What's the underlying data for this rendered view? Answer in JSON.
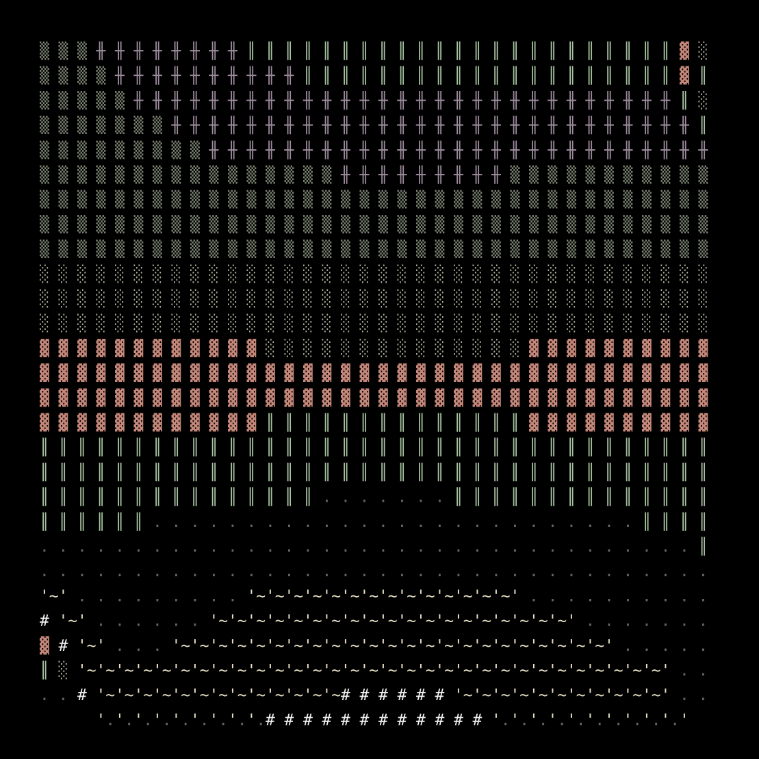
{
  "rows": [
    "▒ ▒ ▒ ╫ ╫ ╫ ╫ ╫ ╫ ╫ ╫ ║ ║ ║ ║ ║ ║ ║ ║ ║ ║ ║ ║ ║ ║ ║ ║ ║ ║ ║ ║ ║ ║ ║ ▓ ░ ",
    "▒ ▒ ▒ ▒ ╫ ╫ ╫ ╫ ╫ ╫ ╫ ╫ ╫ ╫ ║ ║ ║ ║ ║ ║ ║ ║ ║ ║ ║ ║ ║ ║ ║ ║ ║ ║ ║ ║ ▓ ║ ",
    "▒ ▒ ▒ ▒ ▒ ╫ ╫ ╫ ╫ ╫ ╫ ╫ ╫ ╫ ╫ ╫ ╫ ╫ ╫ ╫ ╫ ╫ ╫ ╫ ╫ ╫ ╫ ╫ ╫ ╫ ╫ ╫ ╫ ╫ ║ ░ ",
    "▒ ▒ ▒ ▒ ▒ ▒ ▒ ╫ ╫ ╫ ╫ ╫ ╫ ╫ ╫ ╫ ╫ ╫ ╫ ╫ ╫ ╫ ╫ ╫ ╫ ╫ ╫ ╫ ╫ ╫ ╫ ╫ ╫ ╫ ╫ ║ ",
    "▒ ▒ ▒ ▒ ▒ ▒ ▒ ▒ ▒ ╫ ╫ ╫ ╫ ╫ ╫ ╫ ╫ ╫ ╫ ╫ ╫ ╫ ╫ ╫ ╫ ╫ ╫ ╫ ╫ ╫ ╫ ╫ ╫ ╫ ╫ ╫ ",
    "▒ ▒ ▒ ▒ ▒ ▒ ▒ ▒ ▒ ▒ ▒ ▒ ▒ ▒ ▒ ▒ ╫ ╫ ╫ ╫ ╫ ╫ ╫ ╫ ╫ ▒ ▒ ▒ ▒ ▒ ▒ ▒ ▒ ▒ ▒ ▒ ",
    "▒ ▒ ▒ ▒ ▒ ▒ ▒ ▒ ▒ ▒ ▒ ▒ ▒ ▒ ▒ ▒ ▒ ▒ ▒ ▒ ▒ ▒ ▒ ▒ ▒ ▒ ▒ ▒ ▒ ▒ ▒ ▒ ▒ ▒ ▒ ▒ ",
    "▒ ▒ ▒ ▒ ▒ ▒ ▒ ▒ ▒ ▒ ▒ ▒ ▒ ▒ ▒ ▒ ▒ ▒ ▒ ▒ ▒ ▒ ▒ ▒ ▒ ▒ ▒ ▒ ▒ ▒ ▒ ▒ ▒ ▒ ▒ ▒ ",
    "▒ ▒ ▒ ▒ ▒ ▒ ▒ ▒ ▒ ▒ ▒ ▒ ▒ ▒ ▒ ▒ ▒ ▒ ▒ ▒ ▒ ▒ ▒ ▒ ▒ ▒ ▒ ▒ ▒ ▒ ▒ ▒ ▒ ▒ ▒ ▒ ",
    "░ ░ ░ ░ ░ ░ ░ ░ ░ ░ ░ ░ ░ ░ ░ ░ ░ ░ ░ ░ ░ ░ ░ ░ ░ ░ ░ ░ ░ ░ ░ ░ ░ ░ ░ ░ ",
    "░ ░ ░ ░ ░ ░ ░ ░ ░ ░ ░ ░ ░ ░ ░ ░ ░ ░ ░ ░ ░ ░ ░ ░ ░ ░ ░ ░ ░ ░ ░ ░ ░ ░ ░ ░ ",
    "░ ░ ░ ░ ░ ░ ░ ░ ░ ░ ░ ░ ░ ░ ░ ░ ░ ░ ░ ░ ░ ░ ░ ░ ░ ░ ░ ░ ░ ░ ░ ░ ░ ░ ░ ░ ",
    "▓ ▓ ▓ ▓ ▓ ▓ ▓ ▓ ▓ ▓ ▓ ▓ ░ ░ ░ ░ ░ ░ ░ ░ ░ ░ ░ ░ ░ ░ ▓ ▓ ▓ ▓ ▓ ▓ ▓ ▓ ▓ ▓ ",
    "▓ ▓ ▓ ▓ ▓ ▓ ▓ ▓ ▓ ▓ ▓ ▓ ▓ ▓ ▓ ▓ ▓ ▓ ▓ ▓ ▓ ▓ ▓ ▓ ▓ ▓ ▓ ▓ ▓ ▓ ▓ ▓ ▓ ▓ ▓ ▓ ",
    "▓ ▓ ▓ ▓ ▓ ▓ ▓ ▓ ▓ ▓ ▓ ▓ ▓ ▓ ▓ ▓ ▓ ▓ ▓ ▓ ▓ ▓ ▓ ▓ ▓ ▓ ▓ ▓ ▓ ▓ ▓ ▓ ▓ ▓ ▓ ▓ ",
    "▓ ▓ ▓ ▓ ▓ ▓ ▓ ▓ ▓ ▓ ▓ ▓ ║ ║ ║ ║ ║ ║ ║ ║ ║ ║ ║ ║ ║ ║ ▓ ▓ ▓ ▓ ▓ ▓ ▓ ▓ ▓ ▓ ",
    "║ ║ ║ ║ ║ ║ ║ ║ ║ ║ ║ ║ ║ ║ ║ ║ ║ ║ ║ ║ ║ ║ ║ ║ ║ ║ ║ ║ ║ ║ ║ ║ ║ ║ ║ ║ ",
    "║ ║ ║ ║ ║ ║ ║ ║ ║ ║ ║ ║ ║ ║ ║ ║ ║ ║ ║ ║ ║ ║ ║ ║ ║ ║ ║ ║ ║ ║ ║ ║ ║ ║ ║ ║ ",
    "║ ║ ║ ║ ║ ║ ║ ║ ║ ║ ║ ║ ║ ║ ║ . . . . . . . ║ ║ ║ ║ ║ ║ ║ ║ ║ ║ ║ ║ ║ ║ ",
    "║ ║ ║ ║ ║ ║ . . . . . . . . . . . . . . . . . . . . . . . . . . ║ ║ ║ ║ ",
    ". . . . . . . . . . . . . . . . . . . . . . . . . . . . . . . . . . . ║ ",
    ". . . . . . . . . . . . . . . . . . . . . . . . . . . . . . . . . . . . ",
    "'~' . . . . . . . . . '~'~'~'~'~'~'~'~'~'~'~'~'~'~' . . . . . . . . . . ",
    "# '~' . . . . . . '~'~'~'~'~'~'~'~'~'~'~'~'~'~'~'~'~'~'~' . . . . . . . ",
    "▓ # '~' . . . '~'~'~'~'~'~'~'~'~'~'~'~'~'~'~'~'~'~'~'~'~'~'~' . . . . . ",
    "║ ░ '~'~'~'~'~'~'~'~'~'~'~'~'~'~'~'~'~'~'~'~'~'~'~'~'~'~'~'~'~'~'~' . . ",
    ". . # '~'~'~'~'~'~'~'~'~'~'~'~'~# # # # # # '~'~'~'~'~'~'~'~'~'~'~' . . ",
    "      '.'.'.'.'.'.'.'.'.# # # # # # # # # # # # '.'.'.'.'.'.'.'.'.'.'    "
  ],
  "colors": {
    "▒": "#7d8474",
    "░": "#a9ad98",
    "╫": "#9c8b9c",
    "║": "#a6c2a0",
    "▓": "#c4877a",
    ".": "#6a6468",
    "'": "#e6dfc4",
    "~": "#e6dfc4",
    "#": "#f2f2f2"
  }
}
